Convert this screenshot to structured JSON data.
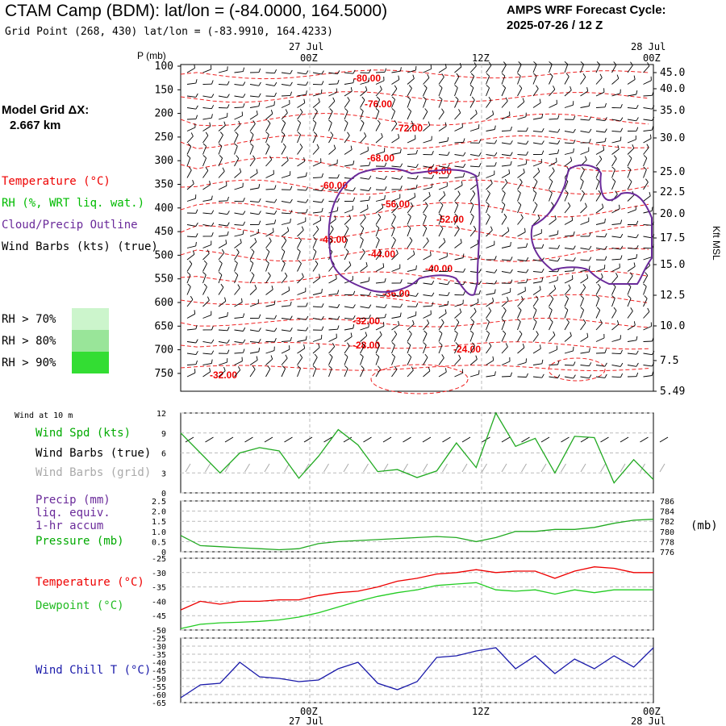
{
  "header": {
    "title": "CTAM Camp (BDM):  lat/lon = (-84.0000, 164.5000)",
    "subtitle": "Grid Point (268, 430) lat/lon = (-83.9910, 164.4233)",
    "cycle_line1": "AMPS WRF Forecast Cycle:",
    "cycle_line2": "2025-07-26 / 12  Z",
    "grid_line1": "Model Grid ΔX:",
    "grid_line2": "2.667 km"
  },
  "time_axis": {
    "top_dates": [
      "27 Jul",
      "28 Jul"
    ],
    "tick_labels": [
      "00Z",
      "12Z",
      "00Z"
    ],
    "bottom_dates": [
      "27 Jul",
      "28 Jul"
    ]
  },
  "legends": {
    "temperature": "Temperature (°C)",
    "rh": "RH (%, WRT liq. wat.)",
    "cloud": "Cloud/Precip Outline",
    "barbs": "Wind Barbs (kts) (true)",
    "rh70": "RH > 70%",
    "rh80": "RH > 80%",
    "rh90": "RH > 90%",
    "wind10m": "Wind at 10 m",
    "wind_spd": "Wind Spd (kts)",
    "wind_barbs_true": "Wind Barbs (true)",
    "wind_barbs_grid": "Wind Barbs (grid)",
    "precip1": "Precip (mm)",
    "precip2": "liq. equiv.",
    "precip3": "1-hr accum",
    "pressure": "Pressure (mb)",
    "pressure_unit": "(mb)",
    "temp2": "Temperature (°C)",
    "dewpoint": "Dewpoint (°C)",
    "windchill": "Wind Chill T (°C)"
  },
  "colors": {
    "temperature": "#ee0000",
    "rh": "#00cc00",
    "cloud": "#6a2a9a",
    "dewpoint": "#22cc22",
    "windchill": "#1a1aaa",
    "grid_barbs": "#aaaaaa",
    "rh70": "#ccf5cc",
    "rh80": "#99e599",
    "rh90": "#33dd33"
  },
  "chart_data": [
    {
      "type": "heatmap",
      "name": "time-height cross section",
      "y_axis_label": "P (mb)",
      "y_ticks": [
        100,
        150,
        200,
        250,
        300,
        350,
        400,
        450,
        500,
        550,
        600,
        650,
        700,
        750
      ],
      "right_axis_label": "Kft MSL",
      "right_ticks": [
        "45.0",
        "40.0",
        "35.0",
        "30.0",
        "25.0",
        "22.5",
        "20.0",
        "17.5",
        "15.0",
        "12.5",
        "10.0",
        "7.5",
        "5.49"
      ],
      "temperature_contour_labels": [
        "-80.00",
        "-76.00",
        "-72.00",
        "-68.00",
        "-64.00",
        "-60.00",
        "-56.00",
        "-52.00",
        "-48.00",
        "-44.00",
        "-40.00",
        "-36.00",
        "-32.00",
        "-28.00",
        "-24.00",
        "-32.00"
      ]
    },
    {
      "type": "line",
      "name": "wind speed 10 m",
      "ylim": [
        0,
        12
      ],
      "y_ticks": [
        0,
        3,
        6,
        9,
        12
      ],
      "x_hours": [
        0,
        2,
        4,
        6,
        8,
        10,
        12,
        14,
        16,
        18,
        20,
        22,
        24,
        26,
        28,
        30,
        32,
        34,
        36,
        38,
        40,
        42,
        44,
        46,
        48
      ],
      "values": [
        9,
        6,
        3,
        6,
        6.8,
        6.3,
        2.2,
        5.5,
        9.5,
        7.2,
        3.2,
        3.5,
        2.3,
        3.3,
        7.5,
        3.8,
        12,
        7,
        8.2,
        3,
        8.5,
        8.3,
        1.5,
        5,
        2
      ]
    },
    {
      "type": "line",
      "name": "precip and pressure",
      "y_ticks_left": [
        "0",
        "0.5",
        "1.0",
        "1.5",
        "2.0",
        "2.5"
      ],
      "y_ticks_right": [
        "776",
        "778",
        "780",
        "782",
        "784",
        "786"
      ],
      "x_hours": [
        0,
        2,
        4,
        6,
        8,
        10,
        12,
        14,
        16,
        18,
        20,
        22,
        24,
        26,
        28,
        30,
        32,
        34,
        36,
        38,
        40,
        42,
        44,
        46,
        48
      ],
      "series": [
        {
          "values": [
            0.8,
            0.3,
            0.25,
            0.2,
            0.15,
            0.1,
            0.15,
            0.4,
            0.5,
            0.55,
            0.6,
            0.65,
            0.7,
            0.75,
            0.7,
            0.5,
            0.7,
            1.0,
            1.0,
            1.1,
            1.1,
            1.2,
            1.4,
            1.55,
            1.6
          ]
        }
      ]
    },
    {
      "type": "line",
      "name": "temperature and dewpoint",
      "ylim": [
        -50,
        -25
      ],
      "y_ticks": [
        -25,
        -30,
        -35,
        -40,
        -45,
        -50
      ],
      "x_hours": [
        0,
        2,
        4,
        6,
        8,
        10,
        12,
        14,
        16,
        18,
        20,
        22,
        24,
        26,
        28,
        30,
        32,
        34,
        36,
        38,
        40,
        42,
        44,
        46,
        48
      ],
      "series": [
        {
          "values": [
            -43,
            -40,
            -41,
            -40,
            -40,
            -39.5,
            -39.5,
            -38,
            -37,
            -36.5,
            -35,
            -33,
            -32,
            -30.5,
            -30,
            -29,
            -30,
            -29.5,
            -29.5,
            -32,
            -29.5,
            -28,
            -28.5,
            -30,
            -30
          ]
        },
        {
          "values": [
            -49.5,
            -48,
            -47.5,
            -47.3,
            -47,
            -46.5,
            -45.5,
            -44,
            -42,
            -40,
            -38.3,
            -37,
            -36,
            -34.5,
            -34,
            -33.5,
            -36,
            -36.5,
            -36,
            -37.5,
            -36,
            -37,
            -36,
            -36,
            -36
          ]
        }
      ]
    },
    {
      "type": "line",
      "name": "wind chill",
      "ylim": [
        -65,
        -25
      ],
      "y_ticks": [
        -25,
        -30,
        -35,
        -40,
        -45,
        -50,
        -55,
        -60,
        -65
      ],
      "x_hours": [
        0,
        2,
        4,
        6,
        8,
        10,
        12,
        14,
        16,
        18,
        20,
        22,
        24,
        26,
        28,
        30,
        32,
        34,
        36,
        38,
        40,
        42,
        44,
        46,
        48
      ],
      "values": [
        -62,
        -54,
        -53,
        -40,
        -49,
        -50,
        -52,
        -51,
        -44,
        -40,
        -53,
        -57,
        -52,
        -37,
        -36,
        -33,
        -31,
        -44,
        -36,
        -47,
        -38,
        -44,
        -36,
        -43,
        -31
      ]
    }
  ]
}
